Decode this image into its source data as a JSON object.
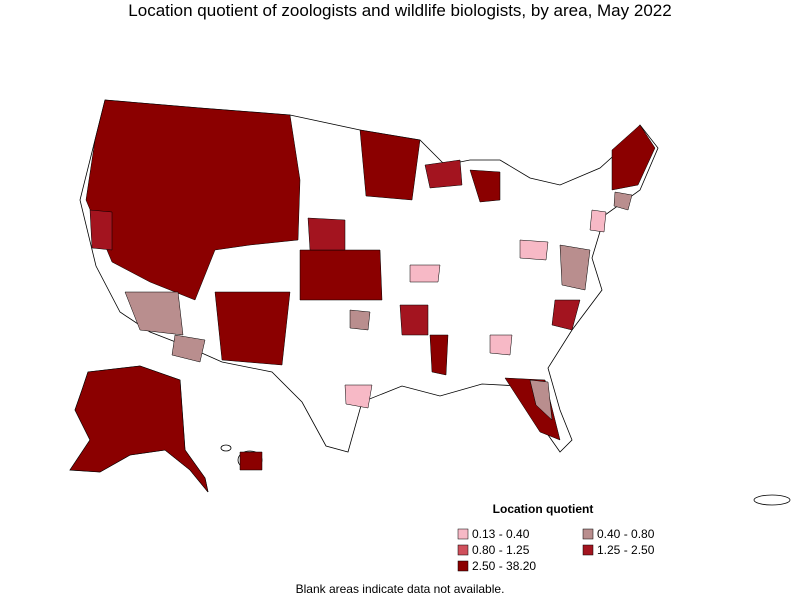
{
  "title": "Location quotient of zoologists and wildlife biologists, by area, May 2022",
  "legend": {
    "title": "Location quotient",
    "items": [
      {
        "label": "0.13 - 0.40",
        "color": "#f7b9c6"
      },
      {
        "label": "0.40 - 0.80",
        "color": "#b98e8e"
      },
      {
        "label": "0.80 - 1.25",
        "color": "#d0505c"
      },
      {
        "label": "1.25 - 2.50",
        "color": "#a3141f"
      },
      {
        "label": "2.50 - 38.20",
        "color": "#8b0000"
      }
    ]
  },
  "footnote": "Blank areas indicate data not available."
}
